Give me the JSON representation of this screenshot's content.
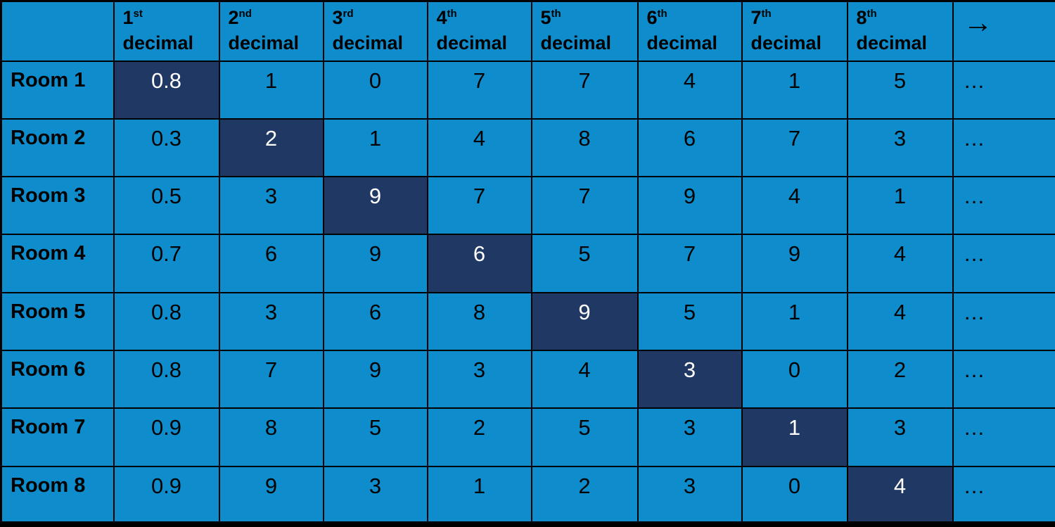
{
  "colors": {
    "cell_bg": "#0E8CCB",
    "highlight_bg": "#1F3864",
    "border": "#000000",
    "text": "#000000",
    "highlight_text": "#FFFFFF"
  },
  "table": {
    "corner_label": "",
    "arrow_header": "→",
    "ellipsis": "…",
    "columns": [
      {
        "number": "1",
        "suffix": "st",
        "label": "decimal"
      },
      {
        "number": "2",
        "suffix": "nd",
        "label": "decimal"
      },
      {
        "number": "3",
        "suffix": "rd",
        "label": "decimal"
      },
      {
        "number": "4",
        "suffix": "th",
        "label": "decimal"
      },
      {
        "number": "5",
        "suffix": "th",
        "label": "decimal"
      },
      {
        "number": "6",
        "suffix": "th",
        "label": "decimal"
      },
      {
        "number": "7",
        "suffix": "th",
        "label": "decimal"
      },
      {
        "number": "8",
        "suffix": "th",
        "label": "decimal"
      }
    ],
    "rows": [
      {
        "label": "Room 1",
        "values": [
          "0.8",
          "1",
          "0",
          "7",
          "7",
          "4",
          "1",
          "5"
        ],
        "highlight_index": 0
      },
      {
        "label": "Room 2",
        "values": [
          "0.3",
          "2",
          "1",
          "4",
          "8",
          "6",
          "7",
          "3"
        ],
        "highlight_index": 1
      },
      {
        "label": "Room 3",
        "values": [
          "0.5",
          "3",
          "9",
          "7",
          "7",
          "9",
          "4",
          "1"
        ],
        "highlight_index": 2
      },
      {
        "label": "Room 4",
        "values": [
          "0.7",
          "6",
          "9",
          "6",
          "5",
          "7",
          "9",
          "4"
        ],
        "highlight_index": 3
      },
      {
        "label": "Room 5",
        "values": [
          "0.8",
          "3",
          "6",
          "8",
          "9",
          "5",
          "1",
          "4"
        ],
        "highlight_index": 4
      },
      {
        "label": "Room 6",
        "values": [
          "0.8",
          "7",
          "9",
          "3",
          "4",
          "3",
          "0",
          "2"
        ],
        "highlight_index": 5
      },
      {
        "label": "Room 7",
        "values": [
          "0.9",
          "8",
          "5",
          "2",
          "5",
          "3",
          "1",
          "3"
        ],
        "highlight_index": 6
      },
      {
        "label": "Room 8",
        "values": [
          "0.9",
          "9",
          "3",
          "1",
          "2",
          "3",
          "0",
          "4"
        ],
        "highlight_index": 7
      }
    ]
  },
  "chart_data": {
    "type": "table",
    "columns": [
      "",
      "1st decimal",
      "2nd decimal",
      "3rd decimal",
      "4th decimal",
      "5th decimal",
      "6th decimal",
      "7th decimal",
      "8th decimal",
      "→"
    ],
    "rows": [
      [
        "Room 1",
        "0.8",
        "1",
        "0",
        "7",
        "7",
        "4",
        "1",
        "5",
        "…"
      ],
      [
        "Room 2",
        "0.3",
        "2",
        "1",
        "4",
        "8",
        "6",
        "7",
        "3",
        "…"
      ],
      [
        "Room 3",
        "0.5",
        "3",
        "9",
        "7",
        "7",
        "9",
        "4",
        "1",
        "…"
      ],
      [
        "Room 4",
        "0.7",
        "6",
        "9",
        "6",
        "5",
        "7",
        "9",
        "4",
        "…"
      ],
      [
        "Room 5",
        "0.8",
        "3",
        "6",
        "8",
        "9",
        "5",
        "1",
        "4",
        "…"
      ],
      [
        "Room 6",
        "0.8",
        "7",
        "9",
        "3",
        "4",
        "3",
        "0",
        "2",
        "…"
      ],
      [
        "Room 7",
        "0.9",
        "8",
        "5",
        "2",
        "5",
        "3",
        "1",
        "3",
        "…"
      ],
      [
        "Room 8",
        "0.9",
        "9",
        "3",
        "1",
        "2",
        "3",
        "0",
        "4",
        "…"
      ]
    ],
    "highlighted_diagonal": [
      [
        "Room 1",
        "1st decimal",
        "0.8"
      ],
      [
        "Room 2",
        "2nd decimal",
        "2"
      ],
      [
        "Room 3",
        "3rd decimal",
        "9"
      ],
      [
        "Room 4",
        "4th decimal",
        "6"
      ],
      [
        "Room 5",
        "5th decimal",
        "9"
      ],
      [
        "Room 6",
        "6th decimal",
        "3"
      ],
      [
        "Room 7",
        "7th decimal",
        "1"
      ],
      [
        "Room 8",
        "8th decimal",
        "4"
      ]
    ]
  }
}
